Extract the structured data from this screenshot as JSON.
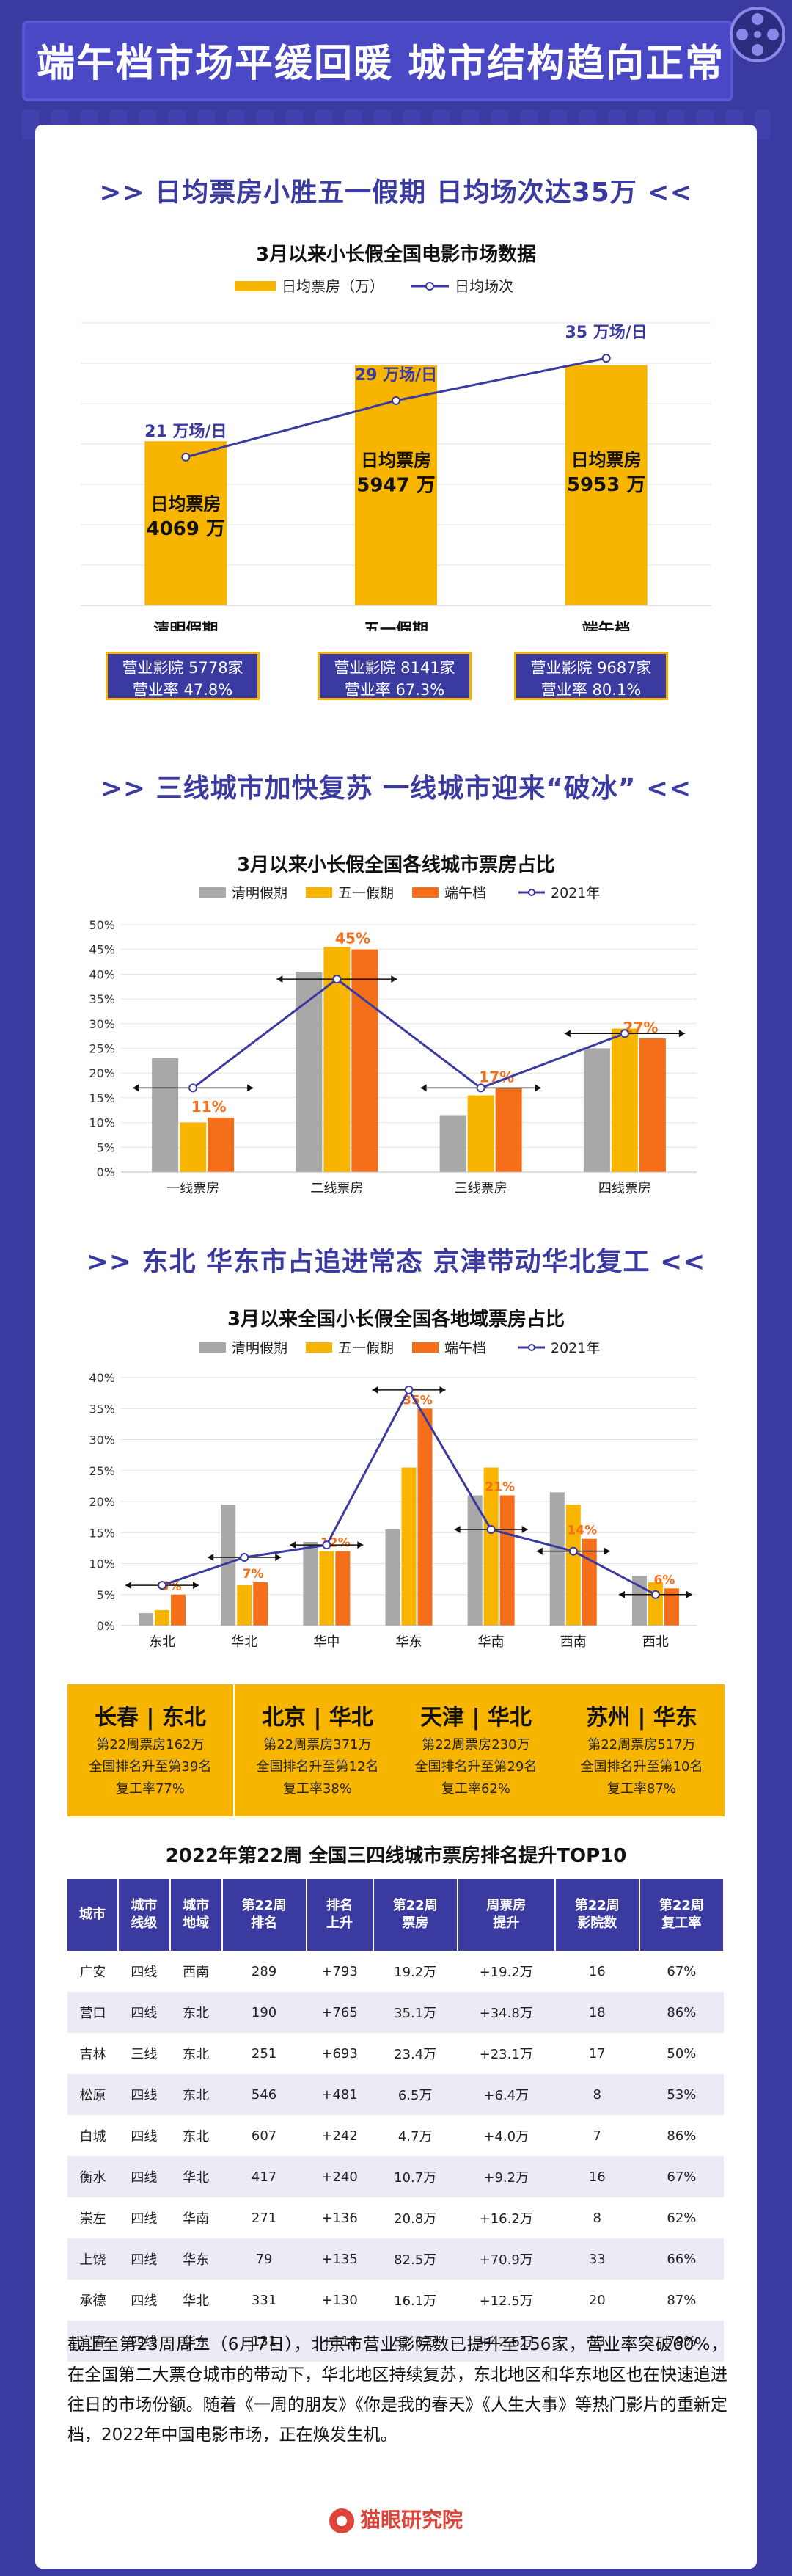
{
  "header": {
    "title": "端午档市场平缓回暖 城市结构趋向正常"
  },
  "section1": {
    "heading": ">> 日均票房小胜五一假期 日均场次达35万 <<",
    "chart_title": "3月以来小长假全国电影市场数据",
    "legend": {
      "box_office": "日均票房（万）",
      "screenings": "日均场次"
    },
    "boxes": [
      {
        "cinemas": "营业影院 5778家",
        "rate": "营业率 47.8%"
      },
      {
        "cinemas": "营业影院 8141家",
        "rate": "营业率 67.3%"
      },
      {
        "cinemas": "营业影院 9687家",
        "rate": "营业率 80.1%"
      }
    ]
  },
  "section2": {
    "heading": ">> 三线城市加快复苏 一线城市迎来“破冰” <<",
    "chart_title": "3月以来小长假全国各线城市票房占比"
  },
  "section3": {
    "heading": ">> 东北 华东市占追进常态 京津带动华北复工 <<",
    "chart_title": "3月以来全国小长假全国各地域票房占比"
  },
  "chart_data": [
    {
      "type": "bar",
      "title": "3月以来小长假全国电影市场数据",
      "categories": [
        "清明假期",
        "五一假期",
        "端午档"
      ],
      "series": [
        {
          "name": "日均票房（万）",
          "values": [
            4069,
            5947,
            5953
          ],
          "labels": [
            "日均票房",
            "日均票房",
            "日均票房"
          ],
          "value_labels": [
            "4069 万",
            "5947 万",
            "5953 万"
          ]
        },
        {
          "name": "日均场次",
          "type": "line",
          "values": [
            21,
            29,
            35
          ],
          "value_labels": [
            "21 万场/日",
            "29 万场/日",
            "35 万场/日"
          ]
        }
      ],
      "ylim": [
        0,
        7000
      ]
    },
    {
      "type": "bar",
      "title": "3月以来小长假全国各线城市票房占比",
      "categories": [
        "一线票房",
        "二线票房",
        "三线票房",
        "四线票房"
      ],
      "yticks": [
        "0%",
        "5%",
        "10%",
        "15%",
        "20%",
        "25%",
        "30%",
        "35%",
        "40%",
        "45%",
        "50%"
      ],
      "ylim": [
        0,
        50
      ],
      "series": [
        {
          "name": "清明假期",
          "values": [
            23,
            40.5,
            11.5,
            25
          ]
        },
        {
          "name": "五一假期",
          "values": [
            10,
            45.5,
            15.5,
            29
          ]
        },
        {
          "name": "端午档",
          "values": [
            11,
            45,
            17,
            27
          ]
        },
        {
          "name": "2021年",
          "type": "line",
          "values": [
            17,
            39,
            17,
            28
          ]
        }
      ],
      "data_labels": [
        "11%",
        "45%",
        "17%",
        "27%"
      ]
    },
    {
      "type": "bar",
      "title": "3月以来全国小长假全国各地域票房占比",
      "categories": [
        "东北",
        "华北",
        "华中",
        "华东",
        "华南",
        "西南",
        "西北"
      ],
      "yticks": [
        "0%",
        "5%",
        "10%",
        "15%",
        "20%",
        "25%",
        "30%",
        "35%",
        "40%"
      ],
      "ylim": [
        0,
        40
      ],
      "series": [
        {
          "name": "清明假期",
          "values": [
            2,
            19.5,
            13.5,
            15.5,
            21,
            21.5,
            8
          ]
        },
        {
          "name": "五一假期",
          "values": [
            2.5,
            6.5,
            12,
            25.5,
            25.5,
            19.5,
            7
          ]
        },
        {
          "name": "端午档",
          "values": [
            5,
            7,
            12,
            35,
            21,
            14,
            6
          ]
        },
        {
          "name": "2021年",
          "type": "line",
          "values": [
            6.5,
            11,
            13,
            38,
            15.5,
            12,
            5
          ]
        }
      ],
      "data_labels": [
        "5%",
        "7%",
        "12%",
        "35%",
        "21%",
        "14%",
        "6%"
      ]
    }
  ],
  "colors": {
    "gray": "#a8a8a8",
    "yellow": "#f8b500",
    "orange": "#f56f1b",
    "navy": "#3b3aa0",
    "line": "#3b3aa0"
  },
  "cities": [
    {
      "name": "长春 | 东北",
      "l1": "第22周票房162万",
      "l2": "全国排名升至第39名",
      "l3": "复工率77%"
    },
    {
      "name": "北京 | 华北",
      "l1": "第22周票房371万",
      "l2": "全国排名升至第12名",
      "l3": "复工率38%"
    },
    {
      "name": "天津 | 华北",
      "l1": "第22周票房230万",
      "l2": "全国排名升至第29名",
      "l3": "复工率62%"
    },
    {
      "name": "苏州 | 华东",
      "l1": "第22周票房517万",
      "l2": "全国排名升至第10名",
      "l3": "复工率87%"
    }
  ],
  "table": {
    "title": "2022年第22周 全国三四线城市票房排名提升TOP10",
    "headers": [
      "城市",
      "城市\n线级",
      "城市\n地域",
      "第22周\n排名",
      "排名\n上升",
      "第22周\n票房",
      "周票房\n提升",
      "第22周\n影院数",
      "第22周\n复工率"
    ],
    "rows": [
      [
        "广安",
        "四线",
        "西南",
        "289",
        "+793",
        "19.2万",
        "+19.2万",
        "16",
        "67%"
      ],
      [
        "营口",
        "四线",
        "东北",
        "190",
        "+765",
        "35.1万",
        "+34.8万",
        "18",
        "86%"
      ],
      [
        "吉林",
        "三线",
        "东北",
        "251",
        "+693",
        "23.4万",
        "+23.1万",
        "17",
        "50%"
      ],
      [
        "松原",
        "四线",
        "东北",
        "546",
        "+481",
        "6.5万",
        "+6.4万",
        "8",
        "53%"
      ],
      [
        "白城",
        "四线",
        "东北",
        "607",
        "+242",
        "4.7万",
        "+4.0万",
        "7",
        "86%"
      ],
      [
        "衡水",
        "四线",
        "华北",
        "417",
        "+240",
        "10.7万",
        "+9.2万",
        "16",
        "67%"
      ],
      [
        "崇左",
        "四线",
        "华南",
        "271",
        "+136",
        "20.8万",
        "+16.2万",
        "8",
        "62%"
      ],
      [
        "上饶",
        "四线",
        "华东",
        "79",
        "+135",
        "82.5万",
        "+70.9万",
        "33",
        "66%"
      ],
      [
        "承德",
        "四线",
        "华北",
        "331",
        "+130",
        "16.1万",
        "+12.5万",
        "20",
        "87%"
      ],
      [
        "宜春",
        "四线",
        "华东",
        "131",
        "+110",
        "52.6万",
        "+42.6万",
        "33",
        "79%"
      ]
    ]
  },
  "paragraph": "截止至第23周周二（6月7日），北京市营业影院数已提升至156家，营业率突破60%，在全国第二大票仓城市的带动下，华北地区持续复苏，东北地区和华东地区也在快速追进往日的市场份额。随着《一周的朋友》《你是我的春天》《人生大事》等热门影片的重新定档，2022年中国电影市场，正在焕发生机。",
  "footer": {
    "brand": "猫眼研究院"
  }
}
